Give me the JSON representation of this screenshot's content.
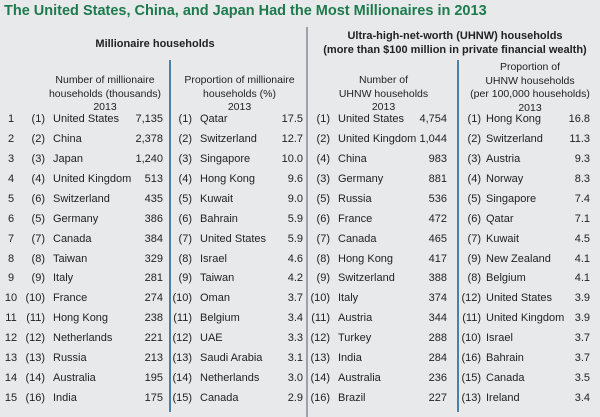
{
  "title": "The United States, China, and Japan Had the Most Millionaires in 2013",
  "groups": [
    {
      "label": "Millionaire households"
    },
    {
      "label": "Ultra-high-net-worth (UHNW) households",
      "label2": "(more than $100 million in private financial wealth)"
    }
  ],
  "colors": {
    "title": "#1c7a4c",
    "background": "#e8e9eb",
    "divider_main": "#9aa3ad",
    "divider_sub": "#4a7fb0"
  },
  "chart_data": {
    "type": "table",
    "title": "The United States, China, and Japan Had the Most Millionaires in 2013",
    "columns": [
      {
        "header": [
          "Number of millionaire",
          "households (thousands)",
          "2013"
        ]
      },
      {
        "header": [
          "Proportion of millionaire",
          "households (%)",
          "2013"
        ]
      },
      {
        "header": [
          "Number of",
          "UHNW households",
          "2013"
        ]
      },
      {
        "header": [
          "Proportion of",
          "UHNW households",
          "(per 100,000 households)",
          "2013"
        ]
      }
    ],
    "ranks": [
      "1",
      "2",
      "3",
      "4",
      "5",
      "6",
      "7",
      "8",
      "9",
      "10",
      "11",
      "12",
      "13",
      "14",
      "15"
    ],
    "tables": [
      [
        [
          "(1)",
          "United States",
          "7,135"
        ],
        [
          "(2)",
          "China",
          "2,378"
        ],
        [
          "(3)",
          "Japan",
          "1,240"
        ],
        [
          "(4)",
          "United Kingdom",
          "513"
        ],
        [
          "(6)",
          "Switzerland",
          "435"
        ],
        [
          "(5)",
          "Germany",
          "386"
        ],
        [
          "(7)",
          "Canada",
          "384"
        ],
        [
          "(8)",
          "Taiwan",
          "329"
        ],
        [
          "(9)",
          "Italy",
          "281"
        ],
        [
          "(10)",
          "France",
          "274"
        ],
        [
          "(11)",
          "Hong Kong",
          "238"
        ],
        [
          "(12)",
          "Netherlands",
          "221"
        ],
        [
          "(13)",
          "Russia",
          "213"
        ],
        [
          "(14)",
          "Australia",
          "195"
        ],
        [
          "(16)",
          "India",
          "175"
        ]
      ],
      [
        [
          "(1)",
          "Qatar",
          "17.5"
        ],
        [
          "(2)",
          "Switzerland",
          "12.7"
        ],
        [
          "(3)",
          "Singapore",
          "10.0"
        ],
        [
          "(4)",
          "Hong Kong",
          "9.6"
        ],
        [
          "(5)",
          "Kuwait",
          "9.0"
        ],
        [
          "(6)",
          "Bahrain",
          "5.9"
        ],
        [
          "(7)",
          "United States",
          "5.9"
        ],
        [
          "(8)",
          "Israel",
          "4.6"
        ],
        [
          "(9)",
          "Taiwan",
          "4.2"
        ],
        [
          "(10)",
          "Oman",
          "3.7"
        ],
        [
          "(11)",
          "Belgium",
          "3.4"
        ],
        [
          "(12)",
          "UAE",
          "3.3"
        ],
        [
          "(13)",
          "Saudi Arabia",
          "3.1"
        ],
        [
          "(14)",
          "Netherlands",
          "3.0"
        ],
        [
          "(15)",
          "Canada",
          "2.9"
        ]
      ],
      [
        [
          "(1)",
          "United States",
          "4,754"
        ],
        [
          "(2)",
          "United Kingdom",
          "1,044"
        ],
        [
          "(4)",
          "China",
          "983"
        ],
        [
          "(3)",
          "Germany",
          "881"
        ],
        [
          "(5)",
          "Russia",
          "536"
        ],
        [
          "(6)",
          "France",
          "472"
        ],
        [
          "(7)",
          "Canada",
          "465"
        ],
        [
          "(8)",
          "Hong Kong",
          "417"
        ],
        [
          "(9)",
          "Switzerland",
          "388"
        ],
        [
          "(10)",
          "Italy",
          "374"
        ],
        [
          "(11)",
          "Austria",
          "344"
        ],
        [
          "(12)",
          "Turkey",
          "288"
        ],
        [
          "(13)",
          "India",
          "284"
        ],
        [
          "(14)",
          "Australia",
          "236"
        ],
        [
          "(16)",
          "Brazil",
          "227"
        ]
      ],
      [
        [
          "(1)",
          "Hong Kong",
          "16.8"
        ],
        [
          "(2)",
          "Switzerland",
          "11.3"
        ],
        [
          "(3)",
          "Austria",
          "9.3"
        ],
        [
          "(4)",
          "Norway",
          "8.3"
        ],
        [
          "(5)",
          "Singapore",
          "7.4"
        ],
        [
          "(6)",
          "Qatar",
          "7.1"
        ],
        [
          "(7)",
          "Kuwait",
          "4.5"
        ],
        [
          "(9)",
          "New Zealand",
          "4.1"
        ],
        [
          "(8)",
          "Belgium",
          "4.1"
        ],
        [
          "(12)",
          "United States",
          "3.9"
        ],
        [
          "(11)",
          "United Kingdom",
          "3.9"
        ],
        [
          "(10)",
          "Israel",
          "3.7"
        ],
        [
          "(16)",
          "Bahrain",
          "3.7"
        ],
        [
          "(15)",
          "Canada",
          "3.5"
        ],
        [
          "(13)",
          "Ireland",
          "3.4"
        ]
      ]
    ]
  }
}
